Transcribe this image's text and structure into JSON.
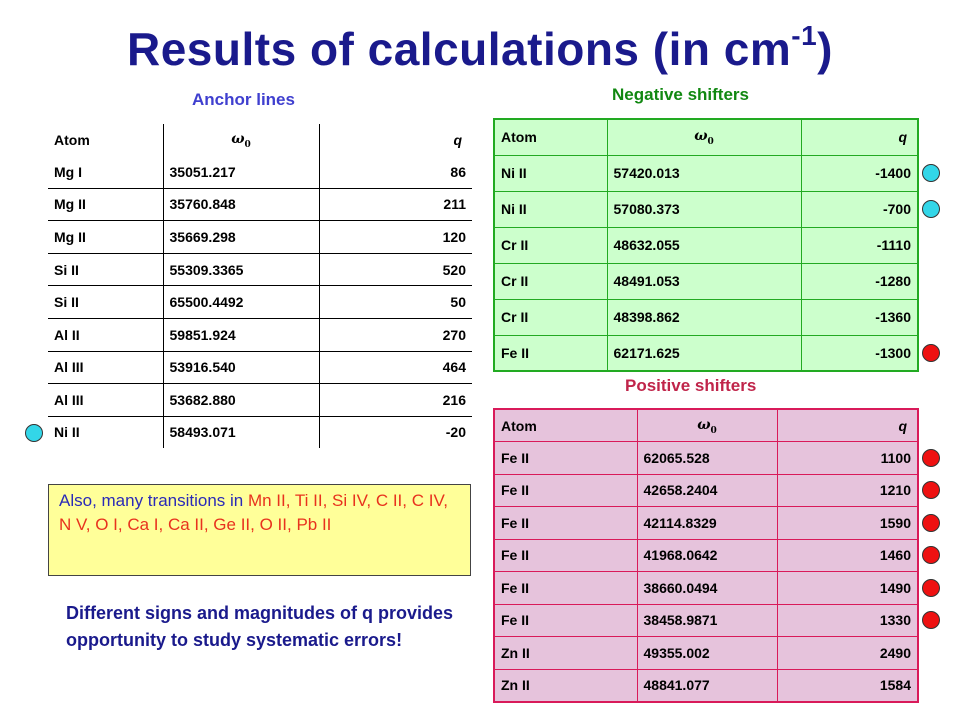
{
  "title": {
    "main": "Results of calculations (in cm",
    "sup": "-1",
    "tail": ")"
  },
  "anchor": {
    "caption": "Anchor lines",
    "headers": {
      "atom": "Atom",
      "omega": "ω",
      "omega_sub": "0",
      "q": "q"
    },
    "rows": [
      {
        "atom": "Mg I",
        "omega": "35051.217",
        "q": "86"
      },
      {
        "atom": "Mg II",
        "omega": "35760.848",
        "q": "211"
      },
      {
        "atom": "Mg II",
        "omega": "35669.298",
        "q": "120"
      },
      {
        "atom": "Si II",
        "omega": "55309.3365",
        "q": "520"
      },
      {
        "atom": "Si II",
        "omega": "65500.4492",
        "q": "50"
      },
      {
        "atom": "Al II",
        "omega": "59851.924",
        "q": "270"
      },
      {
        "atom": "Al III",
        "omega": "53916.540",
        "q": "464"
      },
      {
        "atom": "Al III",
        "omega": "53682.880",
        "q": "216"
      },
      {
        "atom": "Ni II",
        "omega": "58493.071",
        "q": "-20"
      }
    ]
  },
  "negative": {
    "caption": "Negative shifters",
    "headers": {
      "atom": "Atom",
      "omega": "ω",
      "omega_sub": "0",
      "q": "q"
    },
    "rows": [
      {
        "atom": "Ni II",
        "omega": "57420.013",
        "q": "-1400"
      },
      {
        "atom": "Ni II",
        "omega": "57080.373",
        "q": "-700"
      },
      {
        "atom": "Cr II",
        "omega": "48632.055",
        "q": "-1110"
      },
      {
        "atom": "Cr II",
        "omega": "48491.053",
        "q": "-1280"
      },
      {
        "atom": "Cr II",
        "omega": "48398.862",
        "q": "-1360"
      },
      {
        "atom": "Fe II",
        "omega": "62171.625",
        "q": "-1300"
      }
    ]
  },
  "positive": {
    "caption": "Positive shifters",
    "headers": {
      "atom": "Atom",
      "omega": "ω",
      "omega_sub": "0",
      "q": "q"
    },
    "rows": [
      {
        "atom": "Fe II",
        "omega": "62065.528",
        "q": "1100"
      },
      {
        "atom": "Fe II",
        "omega": "42658.2404",
        "q": "1210"
      },
      {
        "atom": "Fe II",
        "omega": "42114.8329",
        "q": "1590"
      },
      {
        "atom": "Fe II",
        "omega": "41968.0642",
        "q": "1460"
      },
      {
        "atom": "Fe II",
        "omega": "38660.0494",
        "q": "1490"
      },
      {
        "atom": "Fe II",
        "omega": "38458.9871",
        "q": "1330"
      },
      {
        "atom": "Zn II",
        "omega": "49355.002",
        "q": "2490"
      },
      {
        "atom": "Zn II",
        "omega": "48841.077",
        "q": "1584"
      }
    ]
  },
  "note": {
    "prefix": "Also, many transitions in ",
    "elements": "Mn II, Ti II, Si IV, C II, C IV, N V, O I, Ca I, Ca II, Ge II, O II, Pb II"
  },
  "bottom_note": "Different signs and magnitudes of q provides opportunity  to study systematic errors!",
  "colors": {
    "title": "#1a1a8c",
    "negative_fill": "#ccffcc",
    "negative_border": "#22aa22",
    "positive_fill": "#e6c3dc",
    "positive_border": "#d91a5a",
    "note_fill": "#ffff99",
    "marker_cyan": "#33d6e8",
    "marker_red": "#ee1111"
  },
  "markers": {
    "anchor_rows": [
      "none",
      "none",
      "none",
      "none",
      "none",
      "none",
      "none",
      "none",
      "cyan"
    ],
    "negative_rows": [
      "cyan",
      "cyan",
      "none",
      "none",
      "none",
      "red"
    ],
    "positive_rows": [
      "red",
      "red",
      "red",
      "red",
      "red",
      "red",
      "none",
      "none"
    ]
  }
}
